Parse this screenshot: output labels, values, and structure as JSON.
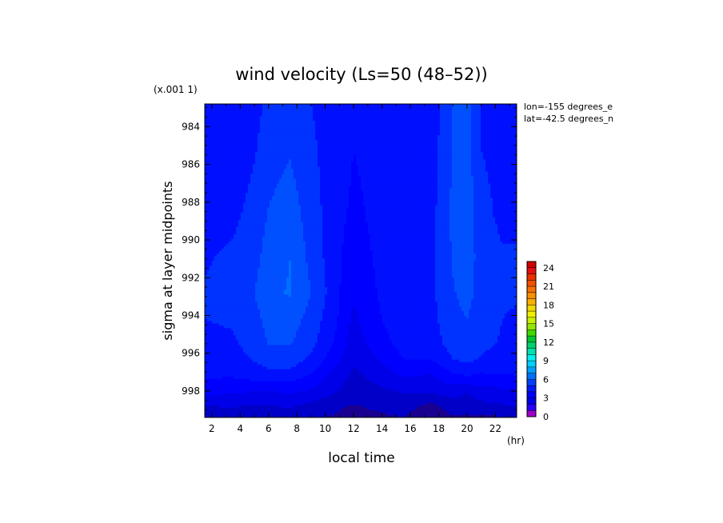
{
  "chart_data": {
    "type": "heatmap",
    "title": "wind velocity (Ls=50 (48–52))",
    "xlabel": "local time",
    "ylabel": "sigma at layer midpoints",
    "x_unit": "(hr)",
    "y_scale_note": "(x.001 1)",
    "annotations": [
      "lon=-155 degrees_e",
      "lat=-42.5 degrees_n"
    ],
    "x": [
      1.5,
      3.5,
      5,
      6,
      7.5,
      9,
      10.5,
      11.5,
      12,
      14,
      15.5,
      17.5,
      19,
      20,
      21,
      22.5,
      23.5
    ],
    "y": [
      999.4,
      998.8,
      998.1,
      997.2,
      996.3,
      995.4,
      994.2,
      992.8,
      991.0,
      988.8,
      985.2,
      982.8
    ],
    "z": [
      [
        2.4,
        2.4,
        2.4,
        2.4,
        2.6,
        2.6,
        2.4,
        2.1,
        2.0,
        2.3,
        2.5,
        1.6,
        2.4,
        2.4,
        2.4,
        2.4,
        2.4
      ],
      [
        3.5,
        3.6,
        3.4,
        3.5,
        3.6,
        3.2,
        2.9,
        2.5,
        2.4,
        2.8,
        3.0,
        2.1,
        3.1,
        3.0,
        3.2,
        3.4,
        3.4
      ],
      [
        4.8,
        4.5,
        4.4,
        4.3,
        4.6,
        4.2,
        3.6,
        3.2,
        3.0,
        3.3,
        3.5,
        3.6,
        3.8,
        3.5,
        4.0,
        4.1,
        4.2
      ],
      [
        5.6,
        5.6,
        5.9,
        6.0,
        6.0,
        5.4,
        4.2,
        3.6,
        3.3,
        3.9,
        4.6,
        4.4,
        5.3,
        5.5,
        5.3,
        5.4,
        5.5
      ],
      [
        6.0,
        6.1,
        6.6,
        7.1,
        7.1,
        6.3,
        5.1,
        4.1,
        3.6,
        4.7,
        5.5,
        5.6,
        6.5,
        6.8,
        6.4,
        6.1,
        6.0
      ],
      [
        6.3,
        6.4,
        6.9,
        7.6,
        7.6,
        6.8,
        5.6,
        4.5,
        4.0,
        5.2,
        5.9,
        6.0,
        7.0,
        7.3,
        6.8,
        6.4,
        6.2
      ],
      [
        6.5,
        6.6,
        7.2,
        7.8,
        8.0,
        7.1,
        5.9,
        4.8,
        4.3,
        5.5,
        6.1,
        6.2,
        7.2,
        7.5,
        6.9,
        6.5,
        6.4
      ],
      [
        6.6,
        6.8,
        7.5,
        8.2,
        8.6,
        7.5,
        6.1,
        5.0,
        4.6,
        5.7,
        6.2,
        6.3,
        7.4,
        7.9,
        7.0,
        6.6,
        6.6
      ],
      [
        6.4,
        6.7,
        7.2,
        7.9,
        8.5,
        7.2,
        6.0,
        5.2,
        4.9,
        5.8,
        6.2,
        6.3,
        7.6,
        8.1,
        7.0,
        6.6,
        6.6
      ],
      [
        6.1,
        6.3,
        6.9,
        7.6,
        8.1,
        7.0,
        6.0,
        5.5,
        5.2,
        5.9,
        6.2,
        6.2,
        7.7,
        8.2,
        6.8,
        6.3,
        6.3
      ],
      [
        5.9,
        5.7,
        6.4,
        7.0,
        7.4,
        6.7,
        6.0,
        5.8,
        5.5,
        6.0,
        6.1,
        6.0,
        7.6,
        7.9,
        6.5,
        6.2,
        6.2
      ],
      [
        5.8,
        5.6,
        6.2,
        6.7,
        7.2,
        6.5,
        6.0,
        5.9,
        5.7,
        6.0,
        6.1,
        5.9,
        7.5,
        7.8,
        6.4,
        6.1,
        6.1
      ]
    ],
    "xlim": [
      1.5,
      23.5
    ],
    "ylim": [
      999.4,
      982.8
    ],
    "xticks": [
      "2",
      "4",
      "6",
      "8",
      "10",
      "12",
      "14",
      "16",
      "18",
      "20",
      "22"
    ],
    "yticks": [
      "984",
      "986",
      "988",
      "990",
      "992",
      "994",
      "996",
      "998"
    ],
    "colorbar": {
      "min": 0,
      "max": 25,
      "step": 1,
      "ticks": [
        "0",
        "3",
        "6",
        "9",
        "12",
        "15",
        "18",
        "21",
        "24"
      ],
      "colors": [
        "#a000c8",
        "#2a00ff",
        "#0000e6",
        "#0000ff",
        "#0018ff",
        "#0040ff",
        "#0070ff",
        "#00a0ff",
        "#00d0ff",
        "#00f0f0",
        "#00e0b0",
        "#00d070",
        "#00c832",
        "#40d800",
        "#90e600",
        "#c8f000",
        "#f0f000",
        "#f0d800",
        "#f8b000",
        "#f89000",
        "#f87000",
        "#f05000",
        "#e83000",
        "#e01010",
        "#d00000"
      ],
      "contour_colors": [
        "#1a0090",
        "#0000c8",
        "#0000e8",
        "#0000ff",
        "#0010ff",
        "#0033ff",
        "#0050ff",
        "#0070ff",
        "#008aff",
        "#00a8ff",
        "#00c4ff",
        "#00e4ff"
      ],
      "grid": false,
      "placement": "right"
    }
  }
}
